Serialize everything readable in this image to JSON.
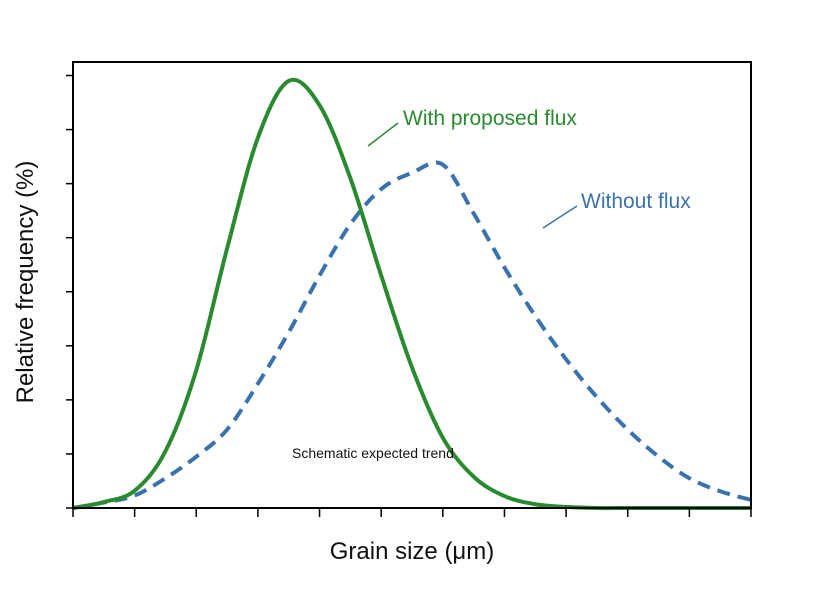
{
  "chart_data": {
    "type": "line",
    "title": "",
    "xlabel": "Grain size (μm)",
    "ylabel": "Relative frequency (%)",
    "xlim": [
      0,
      11
    ],
    "ylim": [
      0,
      8.25
    ],
    "x_ticks": [
      0,
      1,
      2,
      3,
      4,
      5,
      6,
      7,
      8,
      9,
      10,
      11
    ],
    "y_ticks": [
      0,
      1,
      2,
      3,
      4,
      5,
      6,
      7,
      8
    ],
    "tick_labels_shown": false,
    "grid": false,
    "legend": "none (series labelled directly on plot)",
    "annotation": "Schematic expected trend",
    "series": [
      {
        "name": "With proposed flux",
        "color": "#2a8a2f",
        "style": "solid",
        "x": [
          0,
          0.5,
          1,
          1.5,
          2,
          2.5,
          3,
          3.5,
          4,
          4.5,
          5,
          5.5,
          6,
          6.5,
          7,
          7.5,
          8,
          8.5,
          9,
          9.5,
          10,
          10.5,
          11
        ],
        "y": [
          0.0,
          0.11,
          0.32,
          1.05,
          2.55,
          4.8,
          6.85,
          7.9,
          7.45,
          6.1,
          4.3,
          2.6,
          1.3,
          0.58,
          0.22,
          0.07,
          0.02,
          0.0,
          0.0,
          0.0,
          0.0,
          0.0,
          0.0
        ]
      },
      {
        "name": "Without flux",
        "color": "#3a72ad",
        "style": "dashed",
        "x": [
          0,
          0.5,
          1,
          1.5,
          2,
          2.5,
          3,
          3.5,
          4,
          4.5,
          5,
          5.5,
          6,
          6.5,
          7,
          7.5,
          8,
          8.5,
          9,
          9.5,
          10,
          10.5,
          11
        ],
        "y": [
          0.0,
          0.1,
          0.23,
          0.55,
          0.95,
          1.45,
          2.3,
          3.25,
          4.3,
          5.25,
          5.9,
          6.2,
          6.35,
          5.45,
          4.45,
          3.55,
          2.75,
          2.05,
          1.45,
          0.95,
          0.55,
          0.31,
          0.15
        ]
      }
    ]
  }
}
